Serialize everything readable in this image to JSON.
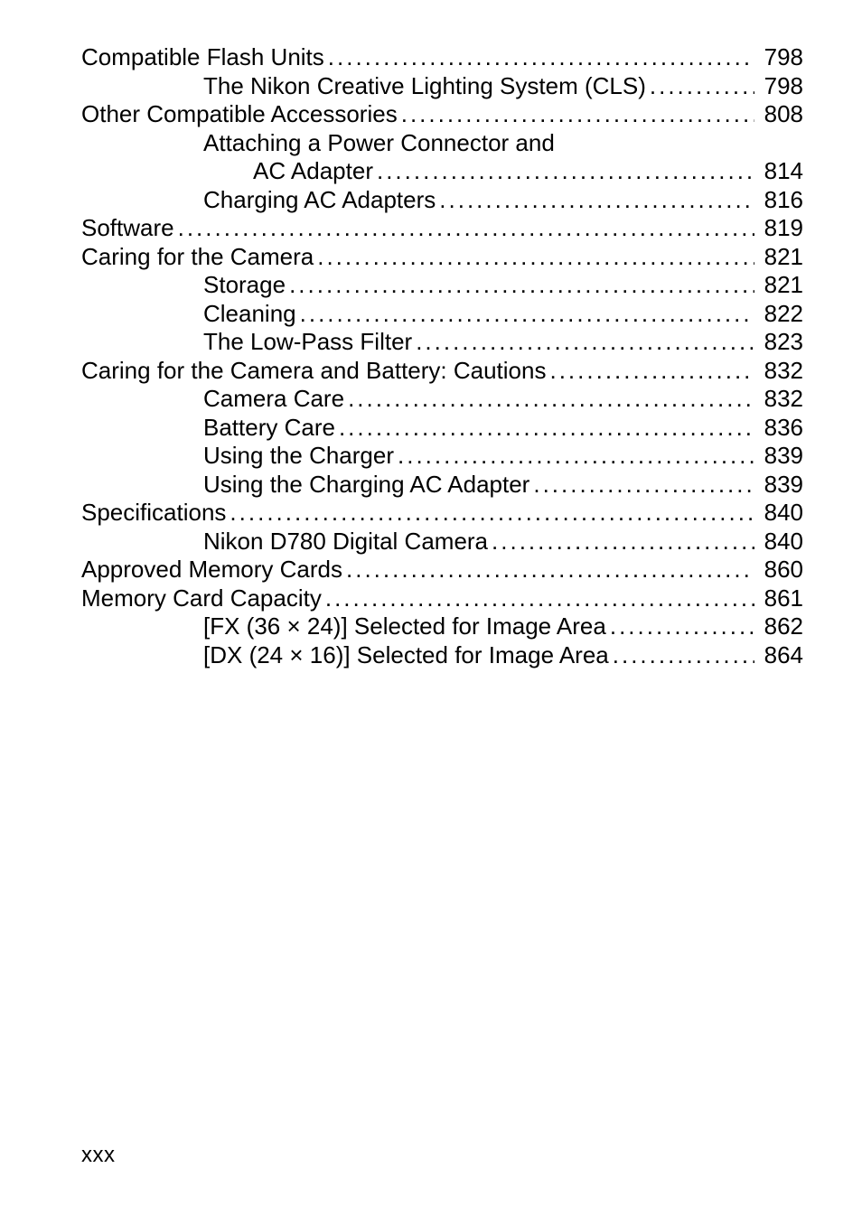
{
  "dot": "................................................................................................................................................................",
  "toc": [
    {
      "indent": 0,
      "label": "Compatible Flash Units",
      "page": "798"
    },
    {
      "indent": 1,
      "label": "The Nikon Creative Lighting System (CLS)",
      "page": "798"
    },
    {
      "indent": 0,
      "label": "Other Compatible Accessories",
      "page": "808"
    },
    {
      "indent": 1,
      "label": "Attaching a Power Connector and",
      "page": null
    },
    {
      "indent": 2,
      "label": "AC Adapter",
      "page": "814"
    },
    {
      "indent": 1,
      "label": "Charging AC Adapters",
      "page": "816"
    },
    {
      "indent": 0,
      "label": "Software",
      "page": "819"
    },
    {
      "indent": 0,
      "label": "Caring for the Camera",
      "page": "821"
    },
    {
      "indent": 1,
      "label": "Storage",
      "page": "821"
    },
    {
      "indent": 1,
      "label": "Cleaning",
      "page": "822"
    },
    {
      "indent": 1,
      "label": "The Low-Pass Filter",
      "page": "823"
    },
    {
      "indent": 0,
      "label": "Caring for the Camera and Battery: Cautions",
      "page": "832"
    },
    {
      "indent": 1,
      "label": "Camera Care",
      "page": "832"
    },
    {
      "indent": 1,
      "label": "Battery Care",
      "page": "836"
    },
    {
      "indent": 1,
      "label": "Using the Charger",
      "page": "839"
    },
    {
      "indent": 1,
      "label": "Using the Charging AC Adapter",
      "page": "839"
    },
    {
      "indent": 0,
      "label": "Specifications",
      "page": "840"
    },
    {
      "indent": 1,
      "label": "Nikon D780 Digital Camera",
      "page": "840"
    },
    {
      "indent": 0,
      "label": "Approved Memory Cards",
      "page": "860"
    },
    {
      "indent": 0,
      "label": "Memory Card Capacity",
      "page": "861"
    },
    {
      "indent": 1,
      "label": "[FX (36 × 24)] Selected for Image Area",
      "page": "862"
    },
    {
      "indent": 1,
      "label": "[DX (24 × 16)] Selected for Image Area",
      "page": "864"
    }
  ],
  "footer": "xxx"
}
